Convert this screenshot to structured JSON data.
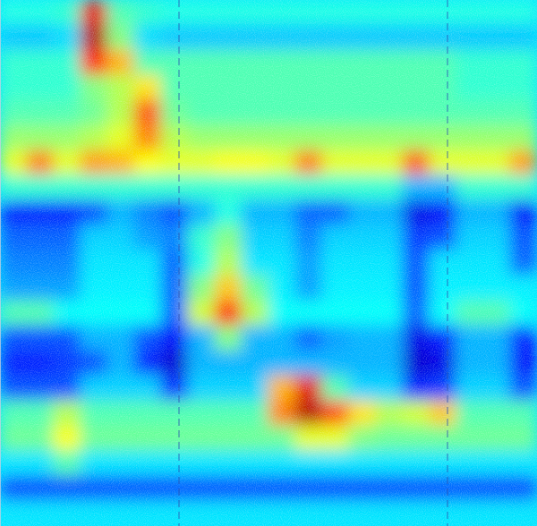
{
  "chart_data": {
    "type": "heatmap",
    "tick_labels": false,
    "color_range": [
      0,
      1
    ],
    "cells": [
      [
        0.4,
        0.4,
        0.42,
        0.9,
        0.45,
        0.42,
        0.4,
        0.4,
        0.4,
        0.4,
        0.4,
        0.4,
        0.4,
        0.4,
        0.4,
        0.4,
        0.4,
        0.4,
        0.4,
        0.4
      ],
      [
        0.32,
        0.32,
        0.34,
        0.95,
        0.5,
        0.34,
        0.32,
        0.32,
        0.32,
        0.32,
        0.32,
        0.32,
        0.32,
        0.32,
        0.32,
        0.32,
        0.32,
        0.32,
        0.32,
        0.32
      ],
      [
        0.42,
        0.42,
        0.42,
        0.85,
        0.7,
        0.45,
        0.45,
        0.45,
        0.45,
        0.45,
        0.45,
        0.45,
        0.45,
        0.45,
        0.45,
        0.45,
        0.45,
        0.42,
        0.42,
        0.42
      ],
      [
        0.42,
        0.42,
        0.42,
        0.5,
        0.55,
        0.65,
        0.45,
        0.45,
        0.45,
        0.45,
        0.45,
        0.45,
        0.45,
        0.45,
        0.45,
        0.45,
        0.45,
        0.42,
        0.42,
        0.42
      ],
      [
        0.45,
        0.45,
        0.45,
        0.48,
        0.55,
        0.8,
        0.48,
        0.45,
        0.45,
        0.45,
        0.45,
        0.45,
        0.45,
        0.45,
        0.45,
        0.45,
        0.45,
        0.45,
        0.45,
        0.45
      ],
      [
        0.52,
        0.52,
        0.52,
        0.55,
        0.6,
        0.75,
        0.55,
        0.52,
        0.52,
        0.52,
        0.52,
        0.52,
        0.52,
        0.52,
        0.52,
        0.52,
        0.52,
        0.52,
        0.52,
        0.52
      ],
      [
        0.6,
        0.75,
        0.6,
        0.72,
        0.7,
        0.62,
        0.6,
        0.6,
        0.62,
        0.62,
        0.6,
        0.75,
        0.6,
        0.6,
        0.6,
        0.78,
        0.6,
        0.6,
        0.6,
        0.72
      ],
      [
        0.42,
        0.42,
        0.42,
        0.42,
        0.42,
        0.42,
        0.42,
        0.42,
        0.42,
        0.42,
        0.42,
        0.42,
        0.42,
        0.42,
        0.42,
        0.3,
        0.3,
        0.42,
        0.42,
        0.42
      ],
      [
        0.15,
        0.15,
        0.15,
        0.2,
        0.3,
        0.25,
        0.2,
        0.3,
        0.4,
        0.3,
        0.3,
        0.22,
        0.22,
        0.3,
        0.3,
        0.1,
        0.12,
        0.3,
        0.3,
        0.12
      ],
      [
        0.22,
        0.22,
        0.22,
        0.33,
        0.33,
        0.28,
        0.25,
        0.42,
        0.5,
        0.33,
        0.33,
        0.25,
        0.33,
        0.33,
        0.33,
        0.18,
        0.2,
        0.33,
        0.33,
        0.2
      ],
      [
        0.25,
        0.25,
        0.25,
        0.35,
        0.35,
        0.35,
        0.22,
        0.4,
        0.55,
        0.35,
        0.35,
        0.28,
        0.35,
        0.35,
        0.35,
        0.2,
        0.35,
        0.35,
        0.35,
        0.22
      ],
      [
        0.28,
        0.28,
        0.28,
        0.36,
        0.36,
        0.36,
        0.22,
        0.5,
        0.68,
        0.48,
        0.36,
        0.28,
        0.36,
        0.36,
        0.36,
        0.2,
        0.36,
        0.36,
        0.36,
        0.36
      ],
      [
        0.45,
        0.45,
        0.38,
        0.38,
        0.38,
        0.38,
        0.22,
        0.58,
        0.85,
        0.55,
        0.38,
        0.38,
        0.38,
        0.38,
        0.38,
        0.22,
        0.38,
        0.45,
        0.45,
        0.38
      ],
      [
        0.2,
        0.2,
        0.2,
        0.3,
        0.3,
        0.2,
        0.12,
        0.3,
        0.5,
        0.3,
        0.3,
        0.22,
        0.28,
        0.3,
        0.3,
        0.1,
        0.15,
        0.3,
        0.3,
        0.15
      ],
      [
        0.15,
        0.15,
        0.18,
        0.2,
        0.3,
        0.15,
        0.08,
        0.3,
        0.3,
        0.3,
        0.3,
        0.3,
        0.3,
        0.3,
        0.3,
        0.08,
        0.1,
        0.3,
        0.3,
        0.12
      ],
      [
        0.2,
        0.2,
        0.2,
        0.33,
        0.33,
        0.33,
        0.15,
        0.33,
        0.33,
        0.33,
        0.7,
        0.9,
        0.45,
        0.33,
        0.33,
        0.15,
        0.18,
        0.33,
        0.33,
        0.2
      ],
      [
        0.45,
        0.45,
        0.55,
        0.45,
        0.45,
        0.45,
        0.45,
        0.45,
        0.45,
        0.45,
        0.75,
        0.95,
        0.8,
        0.65,
        0.55,
        0.58,
        0.68,
        0.45,
        0.45,
        0.45
      ],
      [
        0.48,
        0.48,
        0.62,
        0.48,
        0.48,
        0.48,
        0.48,
        0.48,
        0.48,
        0.48,
        0.48,
        0.6,
        0.6,
        0.5,
        0.48,
        0.48,
        0.48,
        0.48,
        0.48,
        0.48
      ],
      [
        0.35,
        0.35,
        0.45,
        0.35,
        0.35,
        0.35,
        0.35,
        0.35,
        0.35,
        0.35,
        0.35,
        0.35,
        0.35,
        0.35,
        0.35,
        0.35,
        0.35,
        0.35,
        0.35,
        0.35
      ],
      [
        0.2,
        0.2,
        0.2,
        0.2,
        0.2,
        0.2,
        0.2,
        0.2,
        0.2,
        0.2,
        0.2,
        0.2,
        0.2,
        0.2,
        0.2,
        0.2,
        0.2,
        0.2,
        0.2,
        0.2
      ],
      [
        0.35,
        0.35,
        0.35,
        0.35,
        0.35,
        0.35,
        0.35,
        0.35,
        0.35,
        0.35,
        0.35,
        0.35,
        0.35,
        0.35,
        0.35,
        0.35,
        0.35,
        0.35,
        0.35,
        0.35
      ]
    ]
  }
}
